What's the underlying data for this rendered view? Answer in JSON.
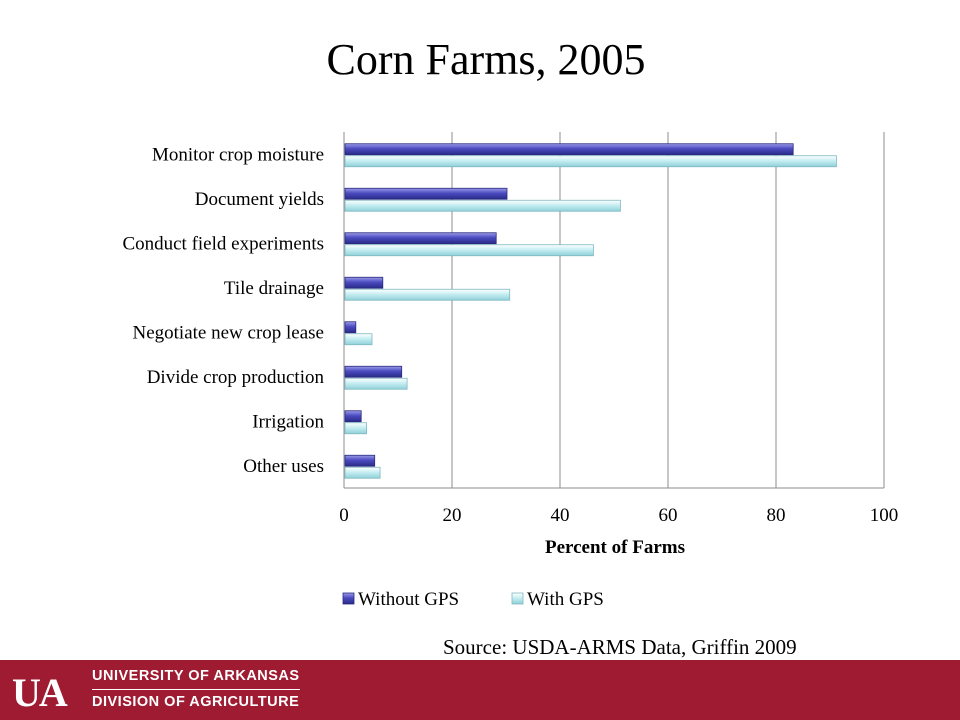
{
  "slide": {
    "title": "Corn Farms, 2005",
    "source": "Source: USDA-ARMS Data, Griffin 2009"
  },
  "footer": {
    "logo_letters": "UA",
    "org_line1": "UNIVERSITY OF ARKANSAS",
    "org_line2": "DIVISION OF AGRICULTURE",
    "background_color": "#9e1b32"
  },
  "chart_data": {
    "type": "bar",
    "orientation": "horizontal",
    "categories": [
      "Monitor crop moisture",
      "Document yields",
      "Conduct field experiments",
      "Tile drainage",
      "Negotiate new crop lease",
      "Divide crop production",
      "Irrigation",
      "Other uses"
    ],
    "series": [
      {
        "name": "Without GPS",
        "values": [
          83,
          30,
          28,
          7,
          2,
          10.5,
          3,
          5.5
        ],
        "color": "#4b4bc0"
      },
      {
        "name": "With GPS",
        "values": [
          91,
          51,
          46,
          30.5,
          5,
          11.5,
          4,
          6.5
        ],
        "color": "#bfe9ee"
      }
    ],
    "xlabel": "Percent of Farms",
    "xlim": [
      0,
      100
    ],
    "xticks": [
      "0",
      "20",
      "40",
      "60",
      "80",
      "100"
    ],
    "grid": true,
    "legend_position": "bottom"
  }
}
